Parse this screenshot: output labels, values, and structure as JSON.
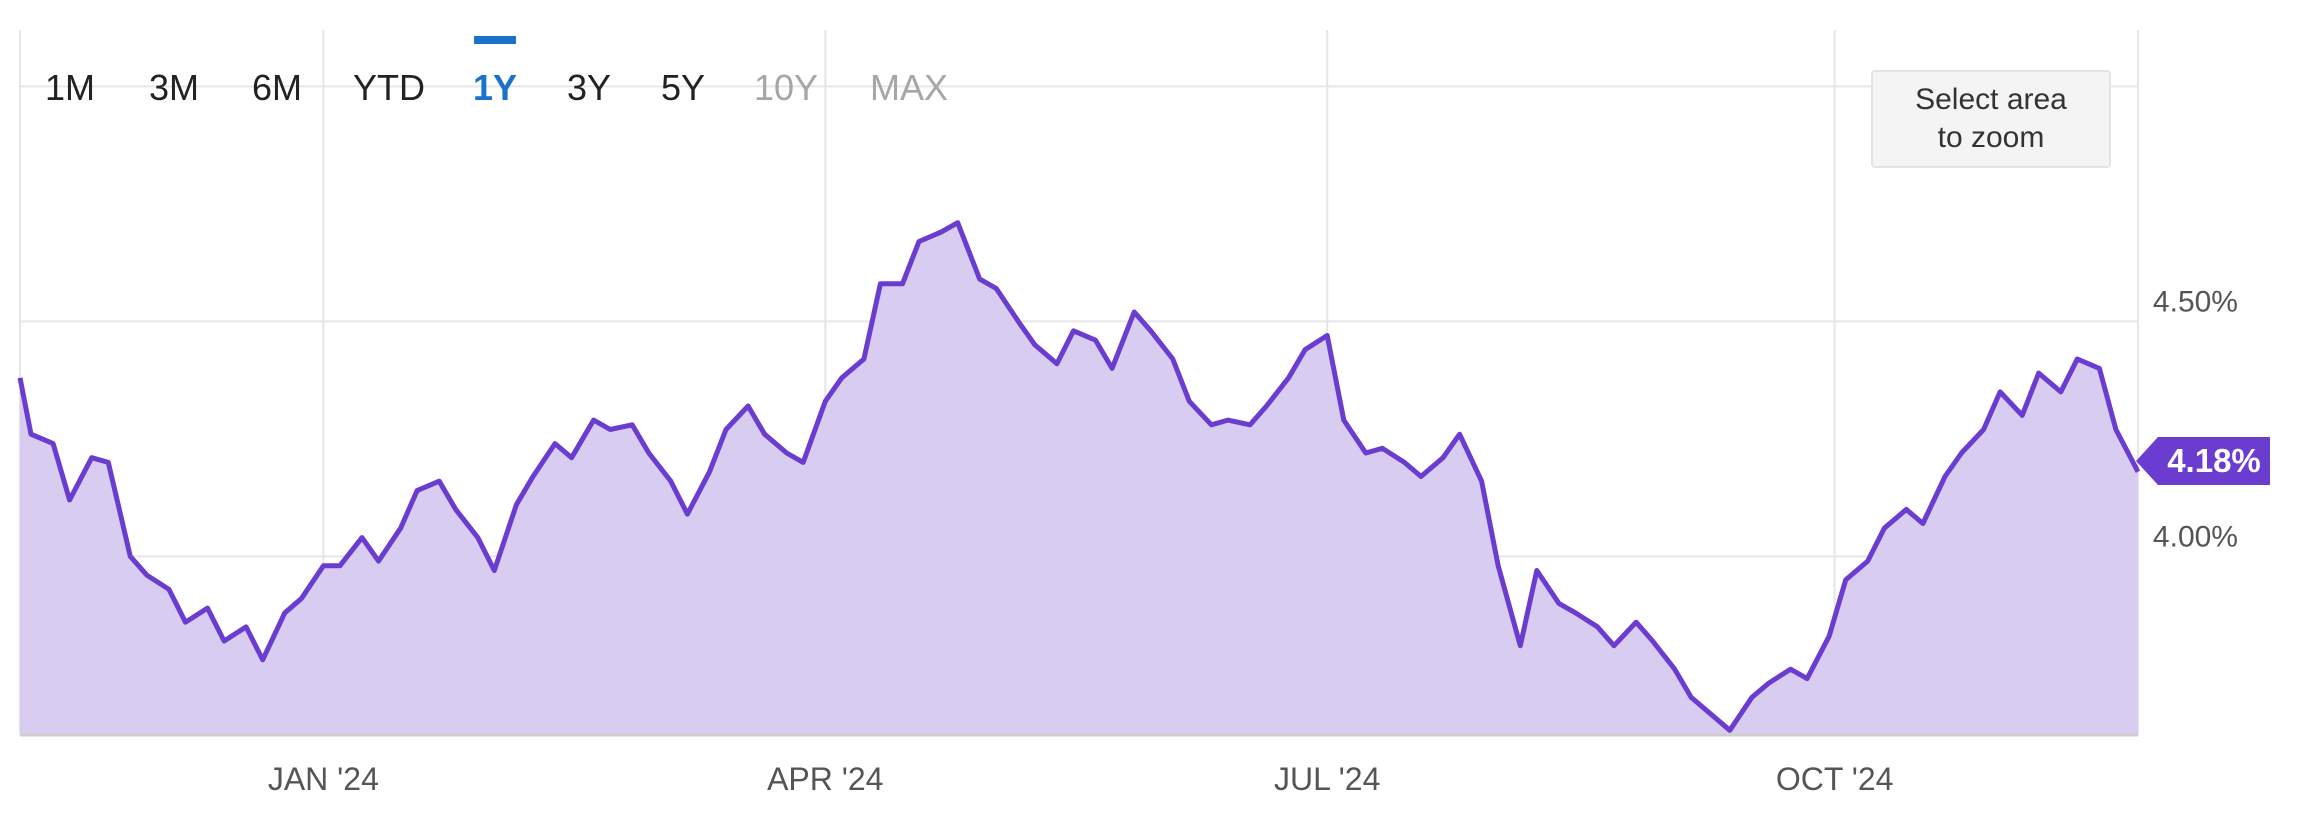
{
  "range_selector": {
    "buttons": [
      {
        "label": "1M",
        "state": "enabled"
      },
      {
        "label": "3M",
        "state": "enabled"
      },
      {
        "label": "6M",
        "state": "enabled"
      },
      {
        "label": "YTD",
        "state": "enabled"
      },
      {
        "label": "1Y",
        "state": "active"
      },
      {
        "label": "3Y",
        "state": "enabled"
      },
      {
        "label": "5Y",
        "state": "enabled"
      },
      {
        "label": "10Y",
        "state": "disabled"
      },
      {
        "label": "MAX",
        "state": "disabled"
      }
    ]
  },
  "zoom_button": {
    "line1": "Select area",
    "line2": "to zoom"
  },
  "current_value_label": "4.18%",
  "colors": {
    "line": "#6a3ccf",
    "fill": "#d8ccf0",
    "active_button": "#1a73c9",
    "disabled_button": "#a6a6a6",
    "grid": "#e6e6e6",
    "axis_text": "#555555"
  },
  "chart_data": {
    "type": "area",
    "title": "",
    "xlabel": "",
    "ylabel": "",
    "x_ticks": [
      "JAN '24",
      "APR '24",
      "JUL '24",
      "OCT '24"
    ],
    "y_ticks": [
      "4.00%",
      "4.50%"
    ],
    "ylim": [
      3.62,
      5.12
    ],
    "grid": true,
    "series": [
      {
        "x": [
          "2023-11-07",
          "2023-11-09",
          "2023-11-13",
          "2023-11-16",
          "2023-11-20",
          "2023-11-23",
          "2023-11-27",
          "2023-11-30",
          "2023-12-04",
          "2023-12-07",
          "2023-12-11",
          "2023-12-14",
          "2023-12-18",
          "2023-12-21",
          "2023-12-25",
          "2023-12-28",
          "2024-01-01",
          "2024-01-04",
          "2024-01-08",
          "2024-01-11",
          "2024-01-15",
          "2024-01-18",
          "2024-01-22",
          "2024-01-25",
          "2024-01-29",
          "2024-02-01",
          "2024-02-05",
          "2024-02-08",
          "2024-02-12",
          "2024-02-15",
          "2024-02-19",
          "2024-02-22",
          "2024-02-26",
          "2024-02-29",
          "2024-03-04",
          "2024-03-07",
          "2024-03-11",
          "2024-03-14",
          "2024-03-18",
          "2024-03-21",
          "2024-03-25",
          "2024-03-28",
          "2024-04-01",
          "2024-04-04",
          "2024-04-08",
          "2024-04-11",
          "2024-04-15",
          "2024-04-18",
          "2024-04-22",
          "2024-04-25",
          "2024-04-29",
          "2024-05-02",
          "2024-05-06",
          "2024-05-09",
          "2024-05-13",
          "2024-05-16",
          "2024-05-20",
          "2024-05-23",
          "2024-05-27",
          "2024-05-30",
          "2024-06-03",
          "2024-06-06",
          "2024-06-10",
          "2024-06-13",
          "2024-06-17",
          "2024-06-20",
          "2024-06-24",
          "2024-06-27",
          "2024-07-01",
          "2024-07-04",
          "2024-07-08",
          "2024-07-11",
          "2024-07-15",
          "2024-07-18",
          "2024-07-22",
          "2024-07-25",
          "2024-07-29",
          "2024-08-01",
          "2024-08-05",
          "2024-08-08",
          "2024-08-12",
          "2024-08-15",
          "2024-08-19",
          "2024-08-22",
          "2024-08-26",
          "2024-08-29",
          "2024-09-02",
          "2024-09-05",
          "2024-09-09",
          "2024-09-12",
          "2024-09-16",
          "2024-09-19",
          "2024-09-23",
          "2024-09-26",
          "2024-09-30",
          "2024-10-03",
          "2024-10-07",
          "2024-10-10",
          "2024-10-14",
          "2024-10-17",
          "2024-10-21",
          "2024-10-24",
          "2024-10-28",
          "2024-10-31",
          "2024-11-04",
          "2024-11-07",
          "2024-11-11",
          "2024-11-14",
          "2024-11-18",
          "2024-11-21",
          "2024-11-25"
        ],
        "values": [
          4.38,
          4.26,
          4.24,
          4.12,
          4.21,
          4.2,
          4.0,
          3.96,
          3.93,
          3.86,
          3.89,
          3.82,
          3.85,
          3.78,
          3.88,
          3.91,
          3.98,
          3.98,
          4.04,
          3.99,
          4.06,
          4.14,
          4.16,
          4.1,
          4.04,
          3.97,
          4.11,
          4.17,
          4.24,
          4.21,
          4.29,
          4.27,
          4.28,
          4.22,
          4.16,
          4.09,
          4.18,
          4.27,
          4.32,
          4.26,
          4.22,
          4.2,
          4.33,
          4.38,
          4.42,
          4.58,
          4.58,
          4.67,
          4.69,
          4.71,
          4.59,
          4.57,
          4.5,
          4.45,
          4.41,
          4.48,
          4.46,
          4.4,
          4.52,
          4.48,
          4.42,
          4.33,
          4.28,
          4.29,
          4.28,
          4.32,
          4.38,
          4.44,
          4.47,
          4.29,
          4.22,
          4.23,
          4.2,
          4.17,
          4.21,
          4.26,
          4.16,
          3.98,
          3.81,
          3.97,
          3.9,
          3.88,
          3.85,
          3.81,
          3.86,
          3.82,
          3.76,
          3.7,
          3.66,
          3.63,
          3.7,
          3.73,
          3.76,
          3.74,
          3.83,
          3.95,
          3.99,
          4.06,
          4.1,
          4.07,
          4.17,
          4.22,
          4.27,
          4.35,
          4.3,
          4.39,
          4.35,
          4.42,
          4.4,
          4.27,
          4.18
        ]
      }
    ]
  }
}
